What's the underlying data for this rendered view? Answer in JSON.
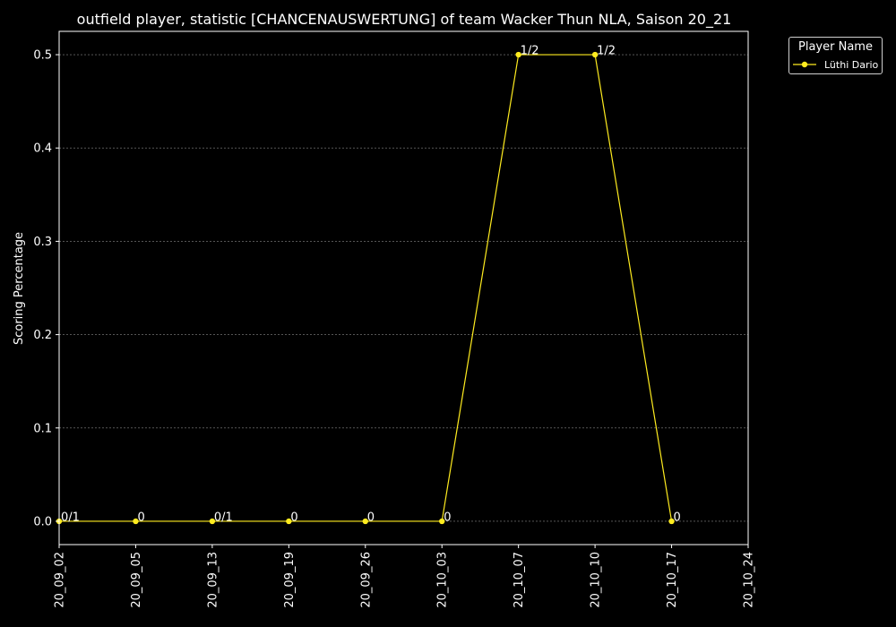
{
  "chart_data": {
    "type": "line",
    "title": "outfield player, statistic [CHANCENAUSWERTUNG] of team Wacker Thun NLA, Saison 20_21",
    "xlabel": "",
    "ylabel": "Scoring Percentage",
    "categories": [
      "20_09_02",
      "20_09_05",
      "20_09_13",
      "20_09_19",
      "20_09_26",
      "20_10_03",
      "20_10_07",
      "20_10_10",
      "20_10_17",
      "20_10_24"
    ],
    "yticks": [
      "0.0",
      "0.1",
      "0.2",
      "0.3",
      "0.4",
      "0.5"
    ],
    "ylim": [
      -0.025,
      0.525
    ],
    "grid": "horizontal, dashed",
    "legend_placement": "outside-top-right",
    "legend_title": "Player Name",
    "series": [
      {
        "name": "Lüthi Dario",
        "color": "#ffec1f",
        "points": [
          {
            "x": "20_09_02",
            "y": 0.0,
            "label": "0/1"
          },
          {
            "x": "20_09_05",
            "y": 0.0,
            "label": "0"
          },
          {
            "x": "20_09_13",
            "y": 0.0,
            "label": "0/1"
          },
          {
            "x": "20_09_19",
            "y": 0.0,
            "label": "0"
          },
          {
            "x": "20_09_26",
            "y": 0.0,
            "label": "0"
          },
          {
            "x": "20_10_03",
            "y": 0.0,
            "label": "0"
          },
          {
            "x": "20_10_07",
            "y": 0.5,
            "label": "1/2"
          },
          {
            "x": "20_10_10",
            "y": 0.5,
            "label": "1/2"
          },
          {
            "x": "20_10_17",
            "y": 0.0,
            "label": "0"
          }
        ]
      }
    ]
  }
}
